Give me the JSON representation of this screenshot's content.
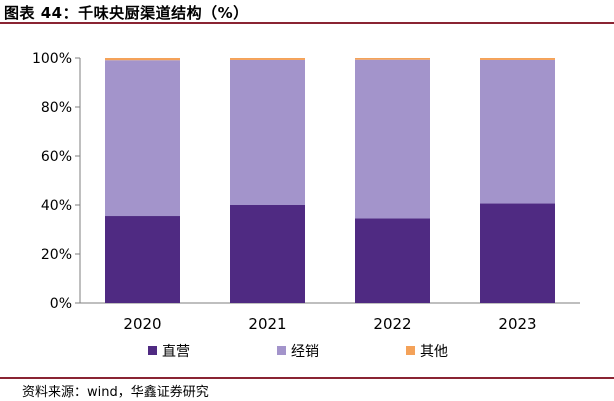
{
  "header": {
    "title": "图表 44：千味央厨渠道结构（%）"
  },
  "footer": {
    "source": "资料来源：wind，华鑫证券研究"
  },
  "colors": {
    "rule": "#8a2432",
    "axis": "#7f7f7f"
  },
  "chart_data": {
    "type": "bar",
    "stacked": true,
    "categories": [
      "2020",
      "2021",
      "2022",
      "2023"
    ],
    "series": [
      {
        "name": "直营",
        "color": "#4f2a82",
        "values": [
          35.5,
          40.0,
          34.5,
          40.6
        ]
      },
      {
        "name": "经销",
        "color": "#a394cb",
        "values": [
          63.6,
          59.2,
          64.8,
          58.6
        ]
      },
      {
        "name": "其他",
        "color": "#f4a259",
        "values": [
          0.9,
          0.8,
          0.7,
          0.8
        ]
      }
    ],
    "ylim": [
      0,
      100
    ],
    "yticks": [
      "0%",
      "20%",
      "40%",
      "60%",
      "80%",
      "100%"
    ],
    "ytick_values": [
      0,
      20,
      40,
      60,
      80,
      100
    ],
    "grid": false,
    "legend": "bottom"
  }
}
